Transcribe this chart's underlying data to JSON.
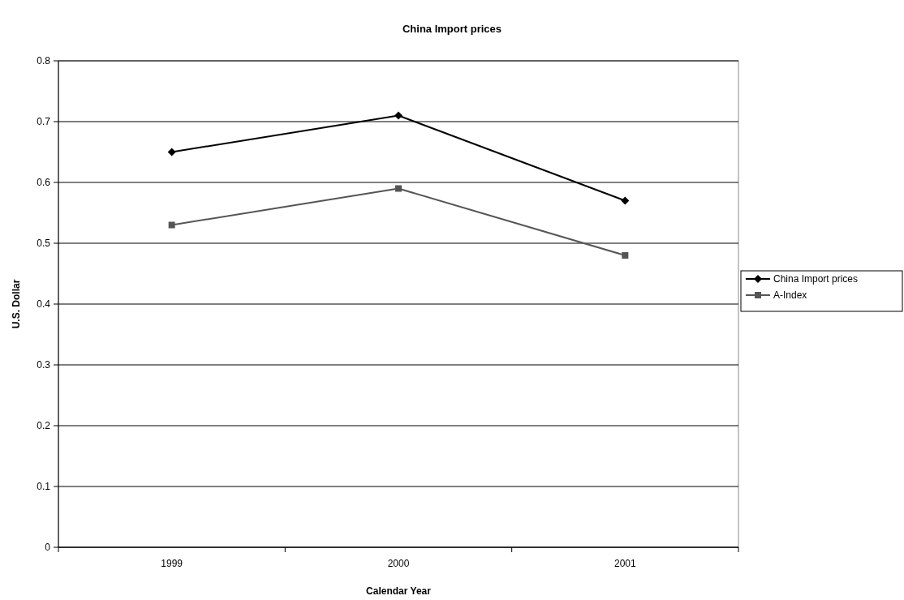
{
  "chart_data": {
    "type": "line",
    "title": "China Import prices",
    "xlabel": "Calendar Year",
    "ylabel": "U.S. Dollar",
    "categories": [
      "1999",
      "2000",
      "2001"
    ],
    "series": [
      {
        "name": "China Import prices",
        "color": "#000000",
        "marker": "diamond",
        "values": [
          0.65,
          0.71,
          0.57
        ]
      },
      {
        "name": "A-Index",
        "color": "#555555",
        "marker": "square",
        "values": [
          0.53,
          0.59,
          0.48
        ]
      }
    ],
    "ylim": [
      0,
      0.8
    ],
    "yticks": [
      0,
      {
        "value": 0.1,
        "label": "0.1"
      },
      {
        "value": 0.2,
        "label": "0.2"
      },
      {
        "value": 0.3,
        "label": "0.3"
      },
      {
        "value": 0.4,
        "label": "0.4"
      },
      {
        "value": 0.5,
        "label": "0.5"
      },
      {
        "value": 0.6,
        "label": "0.6"
      },
      {
        "value": 0.7,
        "label": "0.7"
      },
      {
        "value": 0.8,
        "label": "0.8"
      }
    ],
    "grid": "y",
    "legend": "right",
    "line_style": "solid"
  }
}
